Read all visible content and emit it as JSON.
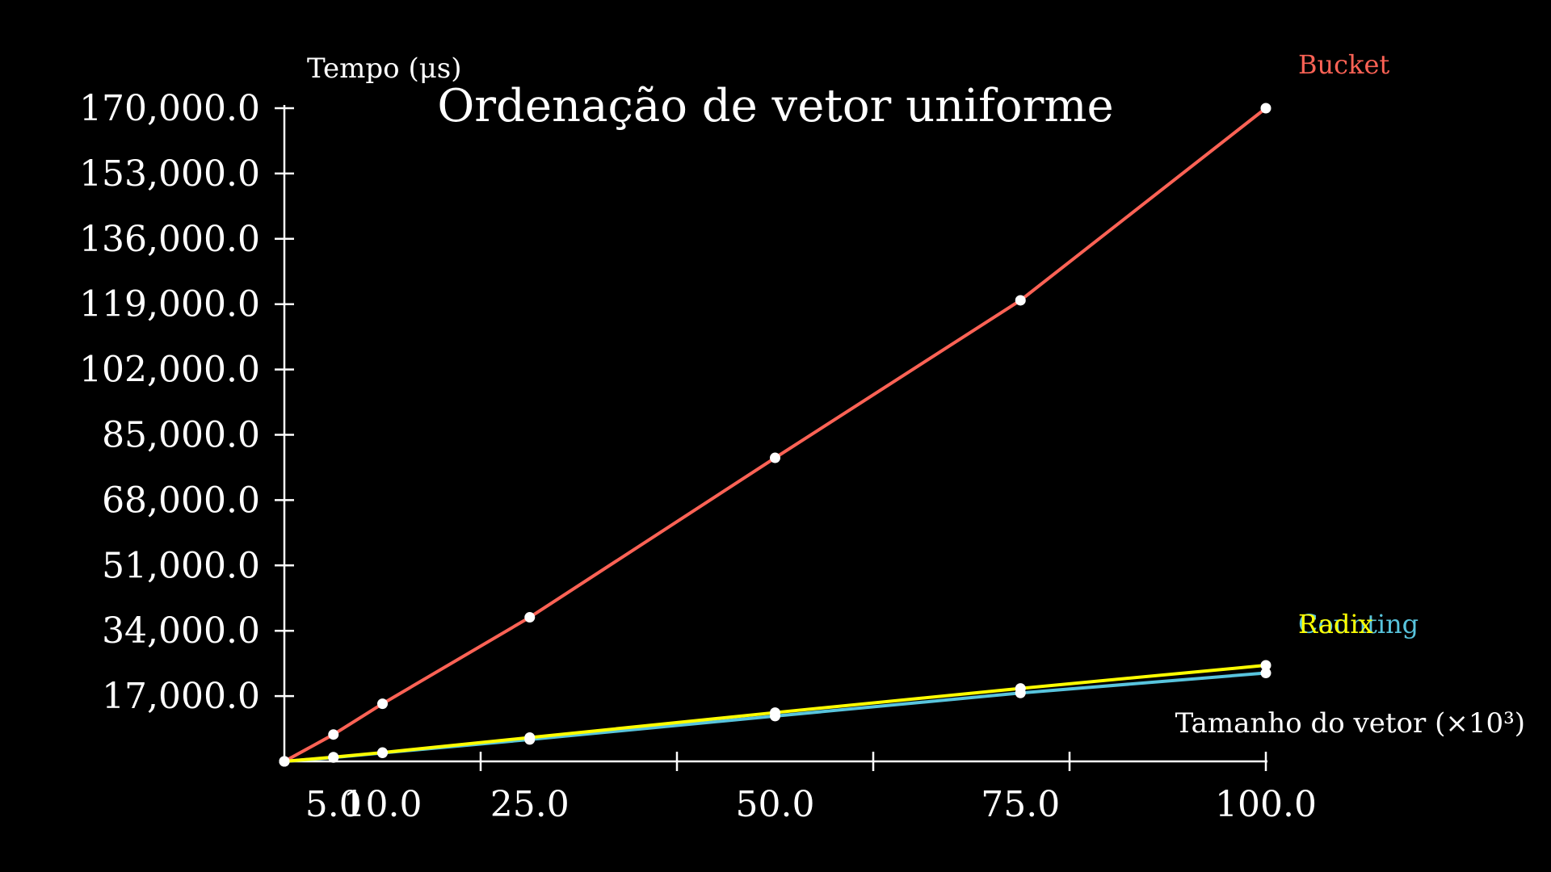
{
  "chart_data": {
    "type": "line",
    "title": "Ordenação de vetor uniforme",
    "xlabel": "Tamanho do vetor (×10³)",
    "ylabel": "Tempo (μs)",
    "xlim": [
      0,
      100
    ],
    "ylim": [
      0,
      170000
    ],
    "x": [
      0,
      5,
      10,
      25,
      50,
      75,
      100
    ],
    "x_ticks": [
      5,
      10,
      25,
      50,
      75,
      100
    ],
    "x_tick_labels": [
      "5.0",
      "10.0",
      "25.0",
      "50.0",
      "75.0",
      "100.0"
    ],
    "x_minor_ticks": [
      20,
      40,
      60,
      80
    ],
    "y_ticks": [
      17000,
      34000,
      51000,
      68000,
      85000,
      102000,
      119000,
      136000,
      153000,
      170000
    ],
    "y_tick_labels": [
      "17,000.0",
      "34,000.0",
      "51,000.0",
      "68,000.0",
      "85,000.0",
      "102,000.0",
      "119,000.0",
      "136,000.0",
      "153,000.0",
      "170,000.0"
    ],
    "grid": false,
    "legend": "series labels at right end of lines",
    "series": [
      {
        "name": "Bucket",
        "color": "#fc6255",
        "values": [
          0,
          7000,
          15000,
          37500,
          79000,
          120000,
          170000
        ]
      },
      {
        "name": "Counting",
        "color": "#58c4dd",
        "values": [
          0,
          1000,
          2200,
          5700,
          11800,
          17800,
          23000
        ]
      },
      {
        "name": "Radix",
        "color": "#ffff00",
        "values": [
          0,
          1100,
          2300,
          6200,
          12700,
          19000,
          25000
        ]
      }
    ]
  }
}
